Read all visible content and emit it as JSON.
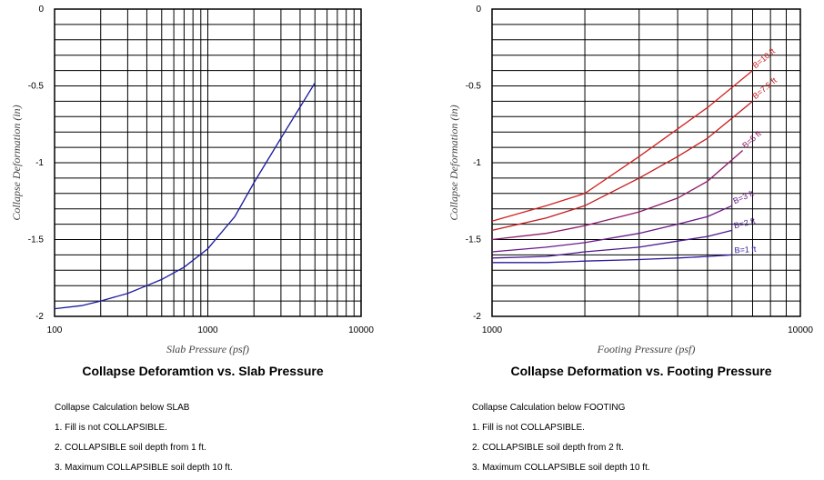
{
  "chart_data": [
    {
      "type": "line",
      "xlabel": "Slab Pressure (psf)",
      "ylabel": "Collapse Deformation (in)",
      "xscale": "log",
      "xlim": [
        100,
        10000
      ],
      "ylim": [
        -2,
        0
      ],
      "x_tick_labels": [
        "100",
        "1000",
        "10000"
      ],
      "x_tick_values": [
        100,
        1000,
        10000
      ],
      "y_tick_labels": [
        "0",
        "-0.5",
        "-1",
        "-1.5",
        "-2"
      ],
      "y_tick_values": [
        0,
        -0.5,
        -1,
        -1.5,
        -2
      ],
      "grid": true,
      "series": [
        {
          "name": "",
          "color": "#1a1a9e",
          "x": [
            100,
            150,
            200,
            300,
            400,
            500,
            700,
            1000,
            1500,
            2000,
            3000,
            5000
          ],
          "y": [
            -1.95,
            -1.93,
            -1.9,
            -1.85,
            -1.8,
            -1.76,
            -1.68,
            -1.56,
            -1.35,
            -1.13,
            -0.84,
            -0.48
          ]
        }
      ]
    },
    {
      "type": "line",
      "xlabel": "Footing Pressure (psf)",
      "ylabel": "Collapse Deformation (in)",
      "xscale": "log",
      "xlim": [
        1000,
        10000
      ],
      "ylim": [
        -2,
        0
      ],
      "x_tick_labels": [
        "1000",
        "10000"
      ],
      "x_tick_values": [
        1000,
        10000
      ],
      "y_tick_labels": [
        "0",
        "-0.5",
        "-1",
        "-1.5",
        "-2"
      ],
      "y_tick_values": [
        0,
        -0.5,
        -1,
        -1.5,
        -2
      ],
      "grid": true,
      "series": [
        {
          "name": "B=10 ft",
          "color": "#d42020",
          "x": [
            1000,
            1500,
            2000,
            3000,
            4000,
            5000,
            7000
          ],
          "y": [
            -1.38,
            -1.28,
            -1.2,
            -0.96,
            -0.78,
            -0.64,
            -0.4
          ]
        },
        {
          "name": "B=7.5 ft",
          "color": "#c41a1a",
          "x": [
            1000,
            1500,
            2000,
            3000,
            4000,
            5000,
            7000
          ],
          "y": [
            -1.44,
            -1.36,
            -1.28,
            -1.1,
            -0.96,
            -0.84,
            -0.6
          ]
        },
        {
          "name": "B=5 ft",
          "color": "#8e1a6a",
          "x": [
            1000,
            1500,
            2000,
            3000,
            4000,
            5000,
            6500
          ],
          "y": [
            -1.5,
            -1.46,
            -1.41,
            -1.32,
            -1.23,
            -1.12,
            -0.92
          ]
        },
        {
          "name": "B=3 ft",
          "color": "#6a1a8a",
          "x": [
            1000,
            1500,
            2000,
            3000,
            4000,
            5000,
            6000
          ],
          "y": [
            -1.58,
            -1.55,
            -1.52,
            -1.46,
            -1.4,
            -1.35,
            -1.28
          ]
        },
        {
          "name": "B=2 ft",
          "color": "#4a1a8e",
          "x": [
            1000,
            1500,
            2000,
            3000,
            4000,
            5000,
            6000
          ],
          "y": [
            -1.62,
            -1.61,
            -1.58,
            -1.55,
            -1.51,
            -1.48,
            -1.44
          ]
        },
        {
          "name": "B=1 ft",
          "color": "#2a1a9e",
          "x": [
            1000,
            1500,
            2000,
            3000,
            4000,
            5000,
            6000
          ],
          "y": [
            -1.65,
            -1.65,
            -1.64,
            -1.63,
            -1.62,
            -1.61,
            -1.6
          ]
        }
      ]
    }
  ],
  "captions": {
    "left": "Collapse Deforamtion vs. Slab Pressure",
    "right": "Collapse Deformation vs. Footing Pressure"
  },
  "notes": {
    "left": [
      "Collapse Calculation below SLAB",
      "1. Fill is not COLLAPSIBLE.",
      "2. COLLAPSIBLE soil depth from 1 ft.",
      "3. Maximum COLLAPSIBLE soil depth 10 ft."
    ],
    "right": [
      "Collapse Calculation below FOOTING",
      "1. Fill is not COLLAPSIBLE.",
      "2. COLLAPSIBLE soil depth from 2 ft.",
      "3. Maximum COLLAPSIBLE soil depth 10 ft."
    ]
  }
}
